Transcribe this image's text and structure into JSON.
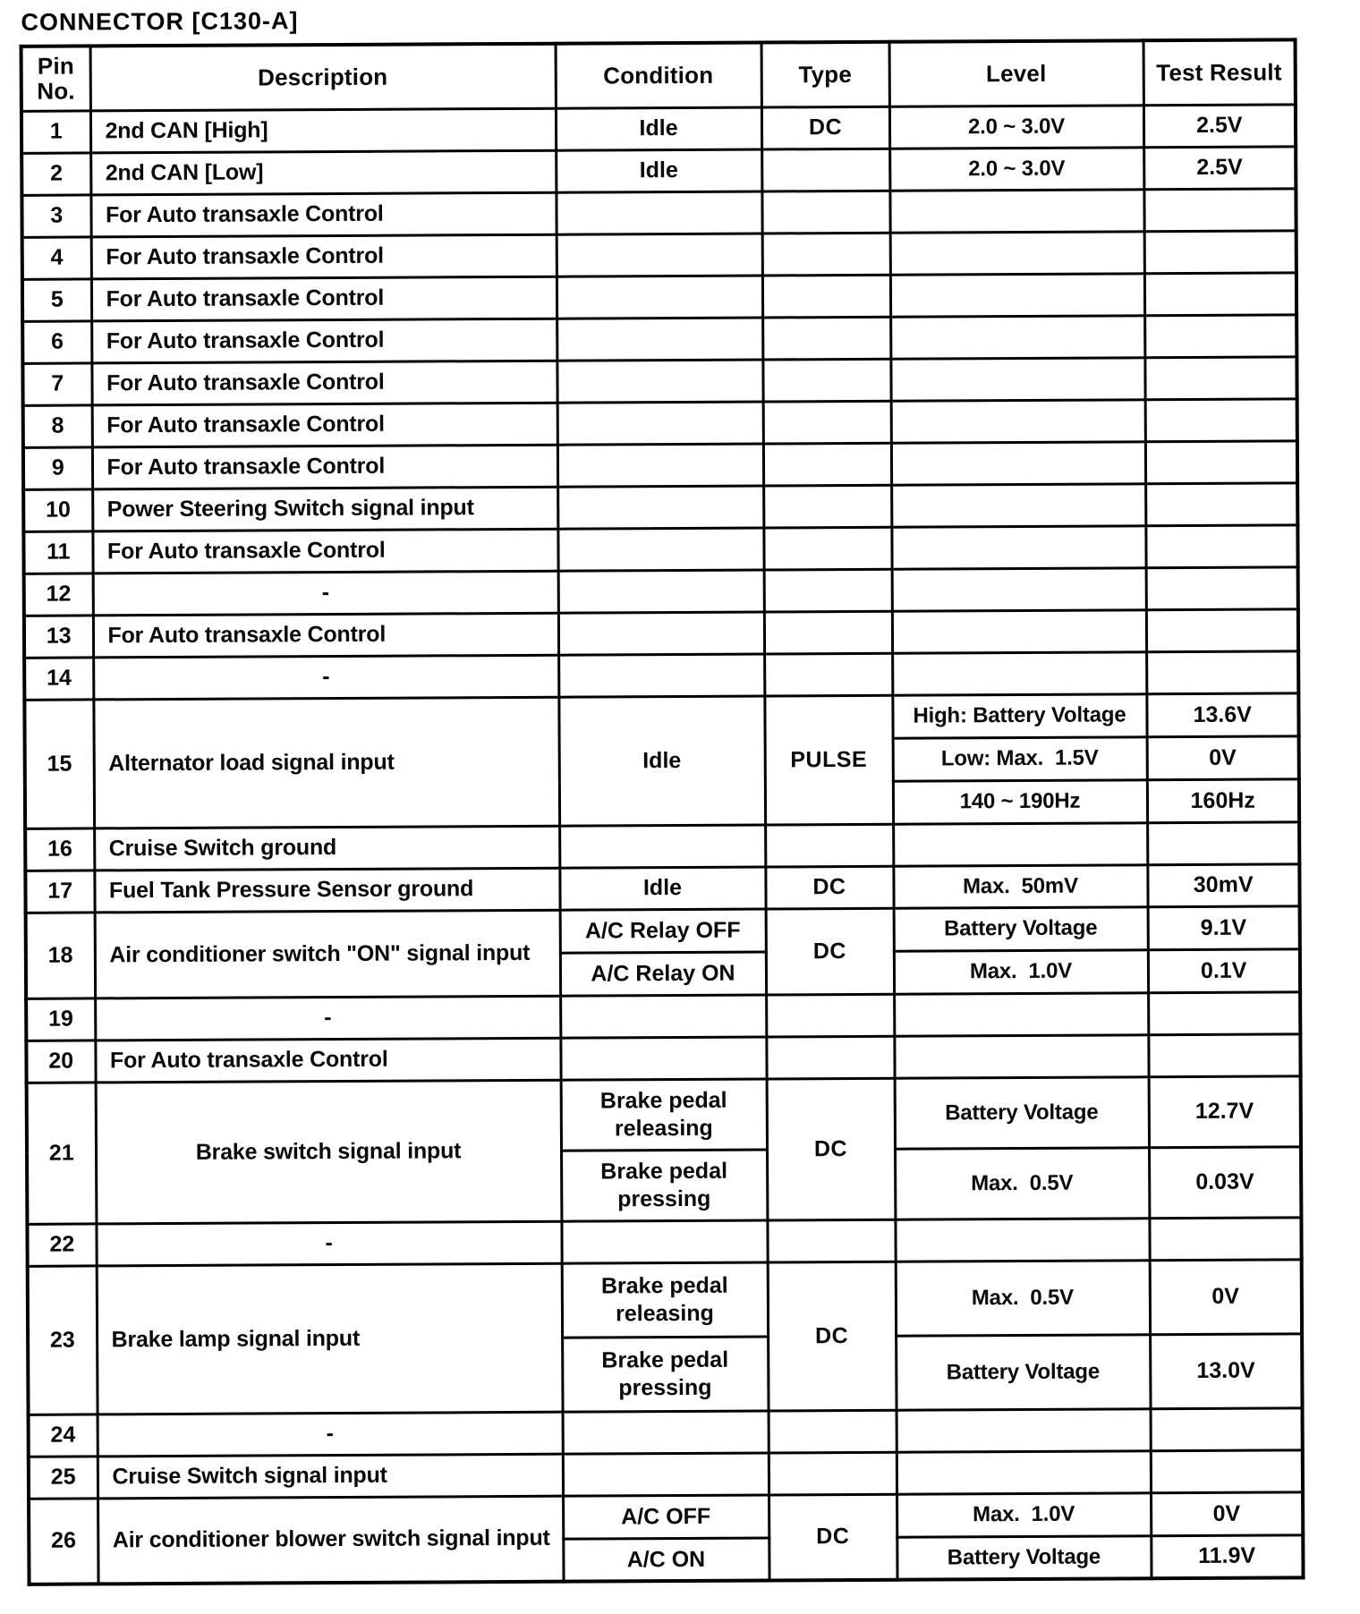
{
  "title": "CONNECTOR [C130-A]",
  "table": {
    "headers": [
      "Pin\nNo.",
      "Description",
      "Condition",
      "Type",
      "Level",
      "Test Result"
    ],
    "rows": [
      {
        "pin": "1",
        "description": "2nd CAN [High]",
        "condition": "Idle",
        "type": "DC",
        "levels": [
          {
            "level": "2.0 ~ 3.0V",
            "result": "2.5V"
          }
        ]
      },
      {
        "pin": "2",
        "description": "2nd CAN [Low]",
        "condition": "Idle",
        "type": "",
        "levels": [
          {
            "level": "2.0 ~ 3.0V",
            "result": "2.5V"
          }
        ]
      },
      {
        "pin": "3",
        "description": "For Auto transaxle Control",
        "condition": "",
        "type": "",
        "levels": [
          {
            "level": "",
            "result": ""
          }
        ]
      },
      {
        "pin": "4",
        "description": "For Auto transaxle Control",
        "condition": "",
        "type": "",
        "levels": [
          {
            "level": "",
            "result": ""
          }
        ]
      },
      {
        "pin": "5",
        "description": "For Auto transaxle Control",
        "condition": "",
        "type": "",
        "levels": [
          {
            "level": "",
            "result": ""
          }
        ]
      },
      {
        "pin": "6",
        "description": "For Auto transaxle Control",
        "condition": "",
        "type": "",
        "levels": [
          {
            "level": "",
            "result": ""
          }
        ]
      },
      {
        "pin": "7",
        "description": "For Auto transaxle Control",
        "condition": "",
        "type": "",
        "levels": [
          {
            "level": "",
            "result": ""
          }
        ]
      },
      {
        "pin": "8",
        "description": "For Auto transaxle Control",
        "condition": "",
        "type": "",
        "levels": [
          {
            "level": "",
            "result": ""
          }
        ]
      },
      {
        "pin": "9",
        "description": "For Auto transaxle Control",
        "condition": "",
        "type": "",
        "levels": [
          {
            "level": "",
            "result": ""
          }
        ]
      },
      {
        "pin": "10",
        "description": "Power Steering Switch signal input",
        "condition": "",
        "type": "",
        "levels": [
          {
            "level": "",
            "result": ""
          }
        ]
      },
      {
        "pin": "11",
        "description": "For Auto transaxle Control",
        "condition": "",
        "type": "",
        "levels": [
          {
            "level": "",
            "result": ""
          }
        ]
      },
      {
        "pin": "12",
        "description": "-",
        "condition": "",
        "type": "",
        "levels": [
          {
            "level": "",
            "result": ""
          }
        ]
      },
      {
        "pin": "13",
        "description": "For Auto transaxle Control",
        "condition": "",
        "type": "",
        "levels": [
          {
            "level": "",
            "result": ""
          }
        ]
      },
      {
        "pin": "14",
        "description": "-",
        "condition": "",
        "type": "",
        "levels": [
          {
            "level": "",
            "result": ""
          }
        ]
      },
      {
        "pin": "15",
        "description": "Alternator load signal input",
        "condition": "Idle",
        "type": "PULSE",
        "levels": [
          {
            "level": "High: Battery Voltage",
            "result": "13.6V"
          },
          {
            "level": "Low: Max.  1.5V",
            "result": "0V"
          },
          {
            "level": "140 ~ 190Hz",
            "result": "160Hz"
          }
        ]
      },
      {
        "pin": "16",
        "description": "Cruise Switch ground",
        "condition": "",
        "type": "",
        "levels": [
          {
            "level": "",
            "result": ""
          }
        ]
      },
      {
        "pin": "17",
        "description": "Fuel Tank Pressure Sensor ground",
        "condition": "Idle",
        "type": "DC",
        "levels": [
          {
            "level": "Max.  50mV",
            "result": "30mV"
          }
        ]
      },
      {
        "pin": "18",
        "description": "Air conditioner switch \"ON\" signal input",
        "conditions": [
          "A/C Relay OFF",
          "A/C Relay ON"
        ],
        "type": "DC",
        "levels": [
          {
            "level": "Battery Voltage",
            "result": "9.1V"
          },
          {
            "level": "Max.  1.0V",
            "result": "0.1V"
          }
        ]
      },
      {
        "pin": "19",
        "description": "-",
        "condition": "",
        "type": "",
        "levels": [
          {
            "level": "",
            "result": ""
          }
        ]
      },
      {
        "pin": "20",
        "description": "For Auto transaxle Control",
        "condition": "",
        "type": "",
        "levels": [
          {
            "level": "",
            "result": ""
          }
        ]
      },
      {
        "pin": "21",
        "description": "Brake switch signal input",
        "desc_align": "center",
        "conditions": [
          "Brake pedal\nreleasing",
          "Brake pedal\npressing"
        ],
        "type": "DC",
        "levels": [
          {
            "level": "Battery Voltage",
            "result": "12.7V"
          },
          {
            "level": "Max.  0.5V",
            "result": "0.03V"
          }
        ]
      },
      {
        "pin": "22",
        "description": "-",
        "condition": "",
        "type": "",
        "levels": [
          {
            "level": "",
            "result": ""
          }
        ]
      },
      {
        "pin": "23",
        "description": "Brake lamp signal input",
        "conditions": [
          "Brake pedal\nreleasing",
          "Brake pedal\npressing"
        ],
        "type": "DC",
        "levels": [
          {
            "level": "Max.  0.5V",
            "result": "0V"
          },
          {
            "level": "Battery Voltage",
            "result": "13.0V"
          }
        ]
      },
      {
        "pin": "24",
        "description": "-",
        "condition": "",
        "type": "",
        "levels": [
          {
            "level": "",
            "result": ""
          }
        ]
      },
      {
        "pin": "25",
        "description": "Cruise Switch signal input",
        "condition": "",
        "type": "",
        "levels": [
          {
            "level": "",
            "result": ""
          }
        ]
      },
      {
        "pin": "26",
        "description": "Air conditioner blower switch signal input",
        "conditions": [
          "A/C OFF",
          "A/C ON"
        ],
        "type": "DC",
        "levels": [
          {
            "level": "Max.  1.0V",
            "result": "0V"
          },
          {
            "level": "Battery Voltage",
            "result": "11.9V"
          }
        ]
      }
    ]
  }
}
